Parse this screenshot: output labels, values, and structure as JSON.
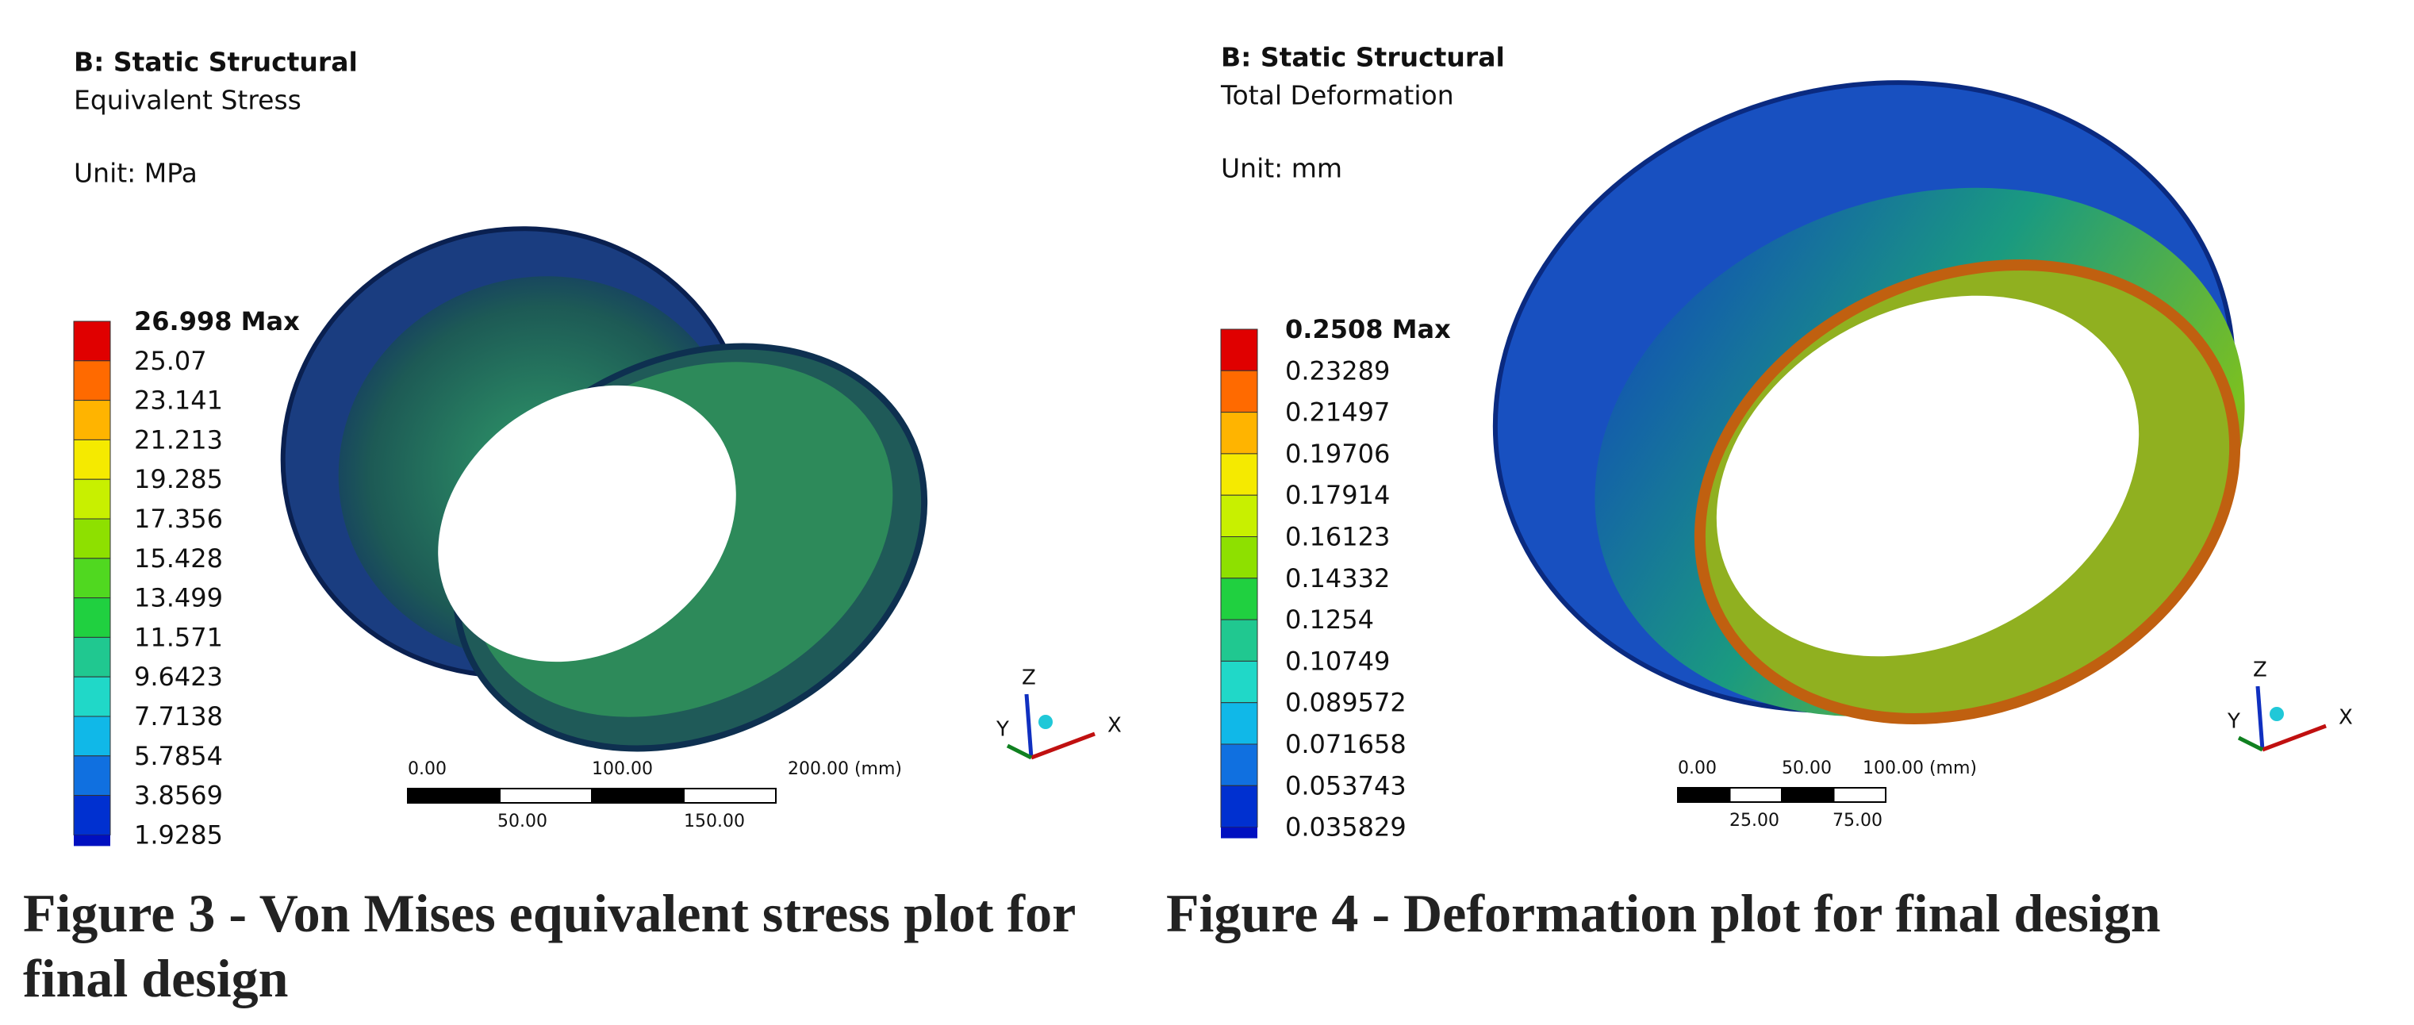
{
  "figures": [
    {
      "header": {
        "title": "B: Static Structural",
        "subtitle": "Equivalent Stress",
        "unit": "Unit: MPa"
      },
      "legend": [
        "26.998 Max",
        "25.07",
        "23.141",
        "21.213",
        "19.285",
        "17.356",
        "15.428",
        "13.499",
        "11.571",
        "9.6423",
        "7.7138",
        "5.7854",
        "3.8569",
        "1.9285"
      ],
      "scale_bar": {
        "top": [
          "0.00",
          "100.00",
          "200.00 (mm)"
        ],
        "bottom": [
          "50.00",
          "150.00"
        ]
      },
      "triad": [
        "Z",
        "Y",
        "X"
      ],
      "caption": "Figure 3 - Von Mises equivalent stress plot for final design"
    },
    {
      "header": {
        "title": "B: Static Structural",
        "subtitle": "Total Deformation",
        "unit": "Unit: mm"
      },
      "legend": [
        "0.2508 Max",
        "0.23289",
        "0.21497",
        "0.19706",
        "0.17914",
        "0.16123",
        "0.14332",
        "0.1254",
        "0.10749",
        "0.089572",
        "0.071658",
        "0.053743",
        "0.035829"
      ],
      "scale_bar": {
        "top": [
          "0.00",
          "50.00",
          "100.00 (mm)"
        ],
        "bottom": [
          "25.00",
          "75.00"
        ]
      },
      "triad": [
        "Z",
        "Y",
        "X"
      ],
      "caption": "Figure 4 - Deformation plot for final design"
    }
  ]
}
